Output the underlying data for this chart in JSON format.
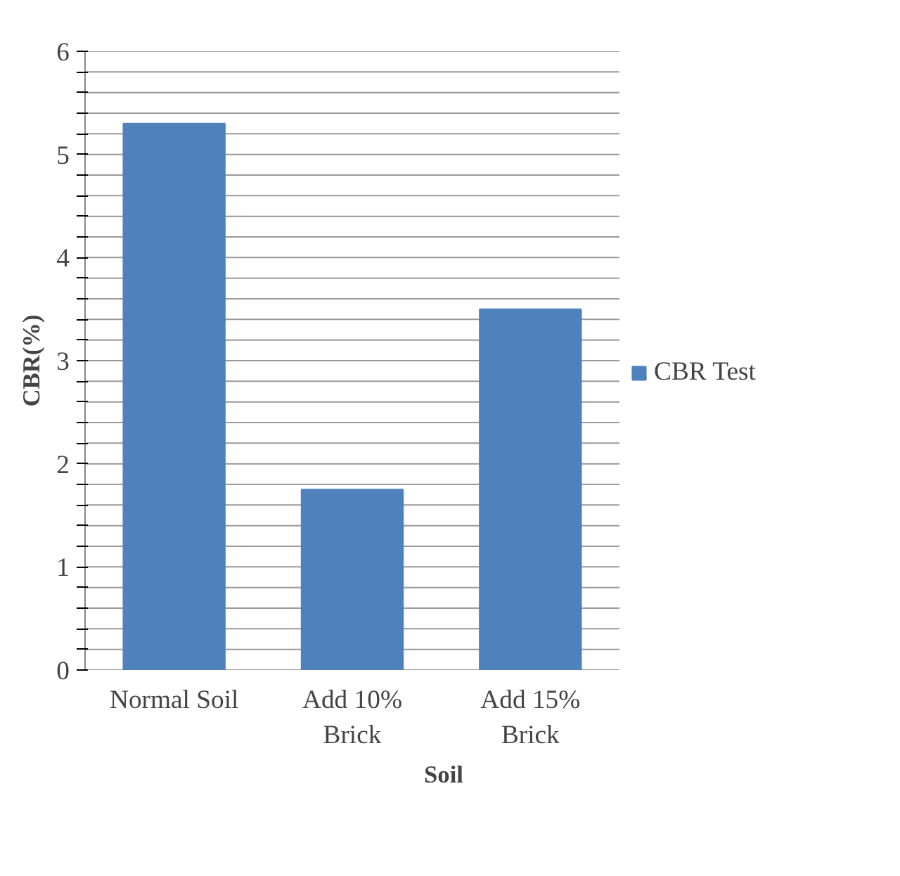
{
  "chart_data": {
    "type": "bar",
    "xlabel": "Soil",
    "ylabel": "CBR(%)",
    "categories": [
      "Normal Soil",
      "Add 10% Brick",
      "Add 15% Brick"
    ],
    "series": [
      {
        "name": "CBR Test",
        "color": "#4f81bd",
        "values": [
          5.3,
          1.75,
          3.5
        ]
      }
    ],
    "ylim": [
      0,
      6
    ],
    "yticks": [
      0,
      {
        "value": 0.2,
        "label": null
      },
      {
        "value": 0.4,
        "label": null
      },
      {
        "value": 0.6,
        "label": null
      },
      {
        "value": 0.8,
        "label": null
      },
      1,
      {
        "value": 1.2,
        "label": null
      },
      {
        "value": 1.4,
        "label": null
      },
      {
        "value": 1.6,
        "label": null
      },
      {
        "value": 1.8,
        "label": null
      },
      2,
      {
        "value": 2.2,
        "label": null
      },
      {
        "value": 2.4,
        "label": null
      },
      {
        "value": 2.6,
        "label": null
      },
      {
        "value": 2.8,
        "label": null
      },
      3,
      {
        "value": 3.2,
        "label": null
      },
      {
        "value": 3.4,
        "label": null
      },
      {
        "value": 3.6,
        "label": null
      },
      {
        "value": 3.8,
        "label": null
      },
      4,
      {
        "value": 4.2,
        "label": null
      },
      {
        "value": 4.4,
        "label": null
      },
      {
        "value": 4.6,
        "label": null
      },
      {
        "value": 4.8,
        "label": null
      },
      5,
      {
        "value": 5.2,
        "label": null
      },
      {
        "value": 5.4,
        "label": null
      },
      {
        "value": 5.6,
        "label": null
      },
      {
        "value": 5.8,
        "label": null
      },
      6
    ],
    "grid": "y",
    "legend": "right"
  }
}
